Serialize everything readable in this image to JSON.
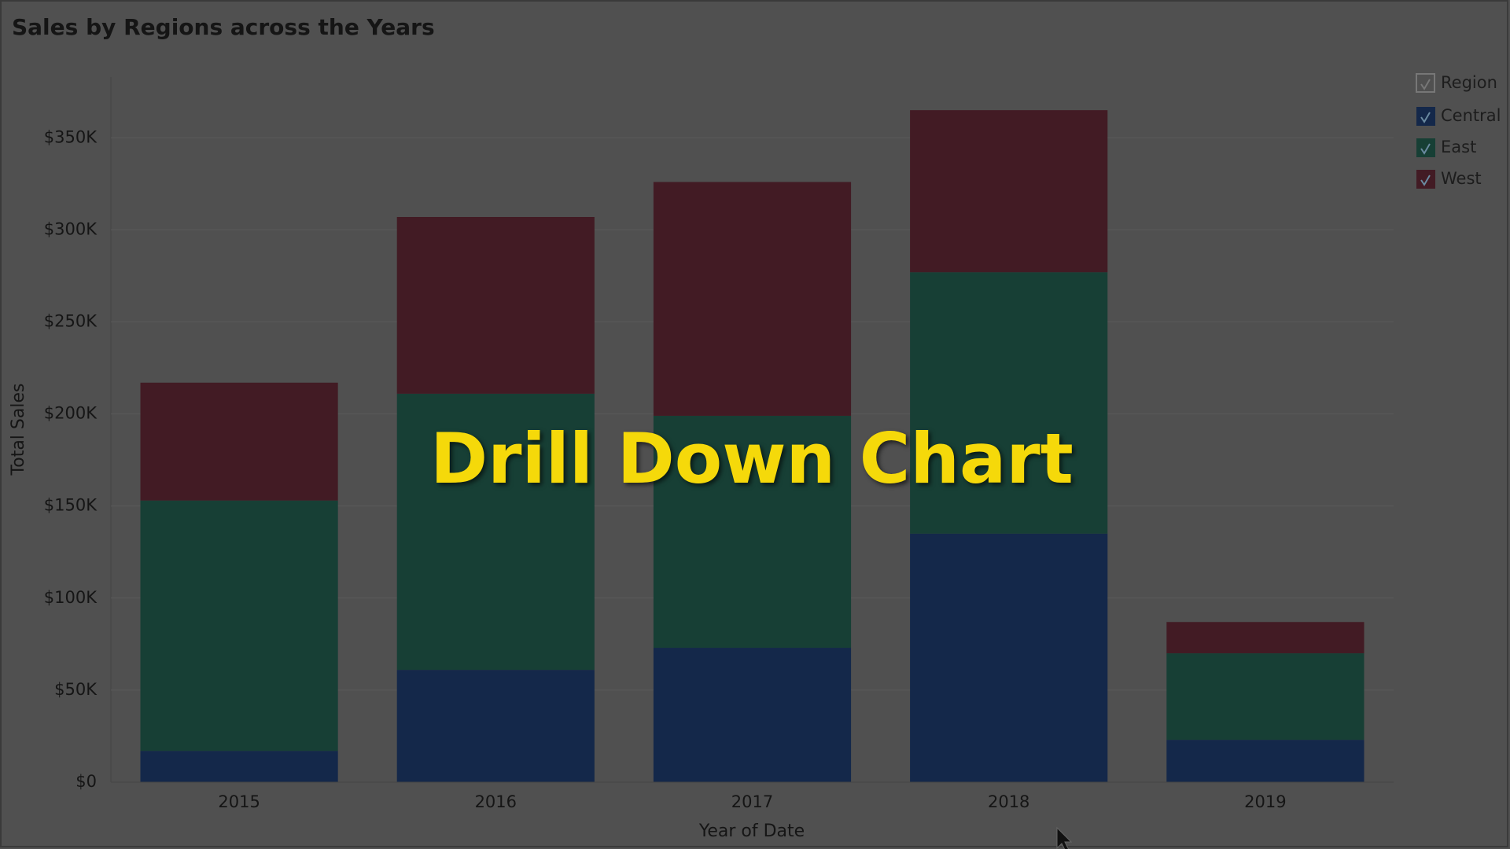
{
  "chart_data": {
    "type": "stacked-bar",
    "title": "Sales by Regions across the Years",
    "overlay_text": "Drill Down Chart",
    "x_label": "Year of Date",
    "y_label": "Total Sales",
    "categories": [
      "2015",
      "2016",
      "2017",
      "2018",
      "2019"
    ],
    "legend_title": "Region",
    "legend": "top-right",
    "series": [
      {
        "name": "Central",
        "color": "#14284a",
        "values": [
          17000,
          61000,
          73000,
          135000,
          23000
        ]
      },
      {
        "name": "East",
        "color": "#173f35",
        "values": [
          136000,
          150000,
          126000,
          142000,
          47000
        ]
      },
      {
        "name": "West",
        "color": "#421b24",
        "values": [
          64000,
          96000,
          127000,
          88000,
          17000
        ]
      }
    ],
    "ylim": [
      0,
      383000
    ],
    "yticks": [
      {
        "value": 0,
        "label": "$0"
      },
      {
        "value": 50000,
        "label": "$50K"
      },
      {
        "value": 100000,
        "label": "$100K"
      },
      {
        "value": 150000,
        "label": "$150K"
      },
      {
        "value": 200000,
        "label": "$200K"
      },
      {
        "value": 250000,
        "label": "$250K"
      },
      {
        "value": 300000,
        "label": "$300K"
      },
      {
        "value": 350000,
        "label": "$350K"
      }
    ],
    "grid": true
  }
}
